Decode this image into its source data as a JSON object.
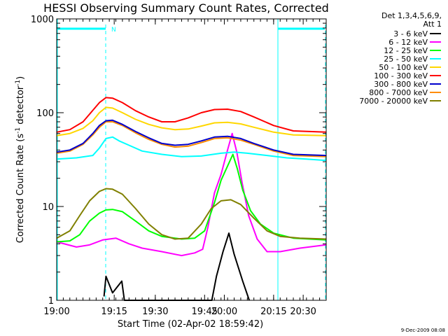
{
  "chart_data": {
    "type": "line",
    "title": "HESSI Observing Summary Count Rates, Corrected",
    "xlabel": "Start Time (02-Apr-02 18:59:42)",
    "ylabel_main": "Corrected Count Rate (s",
    "ylabel_sup1": "-1",
    "ylabel_mid": " detector",
    "ylabel_sup2": "-1",
    "ylabel_end": ")",
    "y_scale": "log",
    "ylim": [
      1,
      1000
    ],
    "xlim_minutes": [
      0,
      41
    ],
    "xticks": [
      {
        "label": "19:00",
        "minutes": 0
      },
      {
        "label": "19:15",
        "minutes": 8.75
      },
      {
        "label": "19:30",
        "minutes": 15
      },
      {
        "label": "19:45",
        "minutes": 22.5
      },
      {
        "label": "20:00",
        "minutes": 25.5
      },
      {
        "label": "20:15",
        "minutes": 33
      },
      {
        "label": "20:30",
        "minutes": 37.5
      }
    ],
    "yticks": [
      {
        "label": "1",
        "value": 1
      },
      {
        "label": "10",
        "value": 10
      },
      {
        "label": "100",
        "value": 100
      },
      {
        "label": "1000",
        "value": 1000
      }
    ],
    "legend": {
      "header1": "Det 1,3,4,5,6,9,",
      "header2": "Att 1",
      "placement": "right"
    },
    "timestamp": "9-Dec-2009 08:08",
    "night_marker": "N",
    "night_bar_color": "#00ffff",
    "series": [
      {
        "name": "3 - 6 keV",
        "color": "#000000",
        "values": [
          [
            7.2,
            1.1
          ],
          [
            7.5,
            1.8
          ],
          [
            8.5,
            1.2
          ],
          [
            9.9,
            1.6
          ],
          [
            10.3,
            1.0
          ],
          [
            23.6,
            1.0
          ],
          [
            24.3,
            1.8
          ],
          [
            25.3,
            3.3
          ],
          [
            26.2,
            5.2
          ],
          [
            27.0,
            3.1
          ],
          [
            28.3,
            1.6
          ],
          [
            29.3,
            1.0
          ]
        ]
      },
      {
        "name": "6 - 12 keV",
        "color": "#ff00ff",
        "values": [
          [
            0,
            4.2
          ],
          [
            3,
            3.7
          ],
          [
            5,
            3.9
          ],
          [
            7,
            4.4
          ],
          [
            9,
            4.6
          ],
          [
            11,
            4.0
          ],
          [
            13,
            3.6
          ],
          [
            16,
            3.3
          ],
          [
            19,
            3.0
          ],
          [
            21,
            3.2
          ],
          [
            22.2,
            3.5
          ],
          [
            23,
            6
          ],
          [
            24,
            14
          ],
          [
            25,
            22
          ],
          [
            26,
            40
          ],
          [
            26.7,
            60
          ],
          [
            27.4,
            38
          ],
          [
            28.2,
            18
          ],
          [
            29.2,
            8
          ],
          [
            30.5,
            4.5
          ],
          [
            32,
            3.3
          ],
          [
            34,
            3.3
          ],
          [
            37,
            3.6
          ],
          [
            41,
            3.9
          ]
        ]
      },
      {
        "name": "12 - 25 keV",
        "color": "#00ff00",
        "values": [
          [
            0,
            4.2
          ],
          [
            2,
            4.3
          ],
          [
            3.5,
            5
          ],
          [
            5,
            7
          ],
          [
            6.5,
            8.5
          ],
          [
            7.5,
            9.2
          ],
          [
            8.5,
            9.3
          ],
          [
            10,
            8.8
          ],
          [
            12,
            7
          ],
          [
            14,
            5.5
          ],
          [
            16,
            4.8
          ],
          [
            19,
            4.5
          ],
          [
            21,
            4.6
          ],
          [
            22.5,
            5.5
          ],
          [
            24,
            11
          ],
          [
            25,
            19
          ],
          [
            26,
            27
          ],
          [
            26.8,
            36
          ],
          [
            27.5,
            25
          ],
          [
            28.3,
            15
          ],
          [
            29.5,
            9
          ],
          [
            31,
            6.5
          ],
          [
            33,
            5.2
          ],
          [
            36,
            4.6
          ],
          [
            41,
            4.4
          ]
        ]
      },
      {
        "name": "25 - 50 keV",
        "color": "#00ffff",
        "values": [
          [
            0,
            32
          ],
          [
            3,
            33
          ],
          [
            5.5,
            35
          ],
          [
            6.5,
            42
          ],
          [
            7.5,
            53
          ],
          [
            8.5,
            55
          ],
          [
            9.5,
            50
          ],
          [
            11,
            45
          ],
          [
            13,
            39
          ],
          [
            16,
            36
          ],
          [
            19,
            34
          ],
          [
            22,
            34.5
          ],
          [
            25,
            37
          ],
          [
            27,
            38
          ],
          [
            29,
            37
          ],
          [
            32,
            35
          ],
          [
            35,
            33
          ],
          [
            38,
            32
          ],
          [
            41,
            31
          ]
        ]
      },
      {
        "name": "50 - 100 keV",
        "color": "#ffd700",
        "values": [
          [
            0,
            57
          ],
          [
            2,
            60
          ],
          [
            4,
            68
          ],
          [
            5.5,
            82
          ],
          [
            6.5,
            100
          ],
          [
            7.5,
            114
          ],
          [
            8.5,
            112
          ],
          [
            10,
            100
          ],
          [
            12,
            85
          ],
          [
            14,
            75
          ],
          [
            16,
            69
          ],
          [
            18,
            66
          ],
          [
            20,
            67
          ],
          [
            22,
            72
          ],
          [
            24,
            78
          ],
          [
            26,
            79
          ],
          [
            28,
            76
          ],
          [
            30,
            70
          ],
          [
            33,
            62
          ],
          [
            36,
            58
          ],
          [
            41,
            57
          ]
        ]
      },
      {
        "name": "100 - 300 keV",
        "color": "#ff0000",
        "values": [
          [
            0,
            62
          ],
          [
            2,
            66
          ],
          [
            4,
            80
          ],
          [
            5.5,
            106
          ],
          [
            6.5,
            128
          ],
          [
            7.5,
            145
          ],
          [
            8.5,
            143
          ],
          [
            10,
            128
          ],
          [
            12,
            105
          ],
          [
            14,
            90
          ],
          [
            16,
            80
          ],
          [
            18,
            80
          ],
          [
            20,
            88
          ],
          [
            22,
            100
          ],
          [
            24,
            108
          ],
          [
            26,
            109
          ],
          [
            28,
            103
          ],
          [
            30,
            90
          ],
          [
            33,
            73
          ],
          [
            36,
            64
          ],
          [
            41,
            62
          ]
        ]
      },
      {
        "name": "300 - 800 keV",
        "color": "#0000cd",
        "values": [
          [
            0,
            38
          ],
          [
            2,
            40
          ],
          [
            4,
            47
          ],
          [
            5.5,
            60
          ],
          [
            6.5,
            73
          ],
          [
            7.5,
            82
          ],
          [
            8.5,
            83
          ],
          [
            10,
            75
          ],
          [
            12,
            63
          ],
          [
            14,
            54
          ],
          [
            16,
            47
          ],
          [
            18,
            45
          ],
          [
            20,
            46
          ],
          [
            22,
            50
          ],
          [
            24,
            55
          ],
          [
            26,
            56
          ],
          [
            28,
            53
          ],
          [
            30,
            47
          ],
          [
            33,
            40
          ],
          [
            36,
            36
          ],
          [
            41,
            35
          ]
        ]
      },
      {
        "name": "800 - 7000 keV",
        "color": "#ff8c00",
        "values": [
          [
            0,
            37
          ],
          [
            2,
            39
          ],
          [
            4,
            46
          ],
          [
            5.5,
            58
          ],
          [
            6.5,
            70
          ],
          [
            7.5,
            80
          ],
          [
            8.5,
            80
          ],
          [
            10,
            73
          ],
          [
            12,
            61
          ],
          [
            14,
            52
          ],
          [
            16,
            46
          ],
          [
            18,
            43
          ],
          [
            20,
            44
          ],
          [
            22,
            48
          ],
          [
            24,
            53
          ],
          [
            26,
            54
          ],
          [
            28,
            51
          ],
          [
            30,
            46
          ],
          [
            33,
            39
          ],
          [
            36,
            35
          ],
          [
            41,
            34
          ]
        ]
      },
      {
        "name": "7000 - 20000 keV",
        "color": "#808000",
        "values": [
          [
            0,
            4.6
          ],
          [
            2,
            5.5
          ],
          [
            3.5,
            8
          ],
          [
            5,
            11.5
          ],
          [
            6.5,
            14.5
          ],
          [
            7.5,
            15.5
          ],
          [
            8.5,
            15.3
          ],
          [
            10,
            13.5
          ],
          [
            12,
            9.5
          ],
          [
            14,
            6.5
          ],
          [
            16,
            5
          ],
          [
            18,
            4.5
          ],
          [
            20,
            4.6
          ],
          [
            22,
            6.5
          ],
          [
            23.5,
            9.5
          ],
          [
            25,
            11.5
          ],
          [
            26.5,
            11.8
          ],
          [
            28,
            10.5
          ],
          [
            30,
            7.5
          ],
          [
            32,
            5.5
          ],
          [
            34,
            4.8
          ],
          [
            37,
            4.6
          ],
          [
            41,
            4.5
          ]
        ]
      }
    ]
  }
}
